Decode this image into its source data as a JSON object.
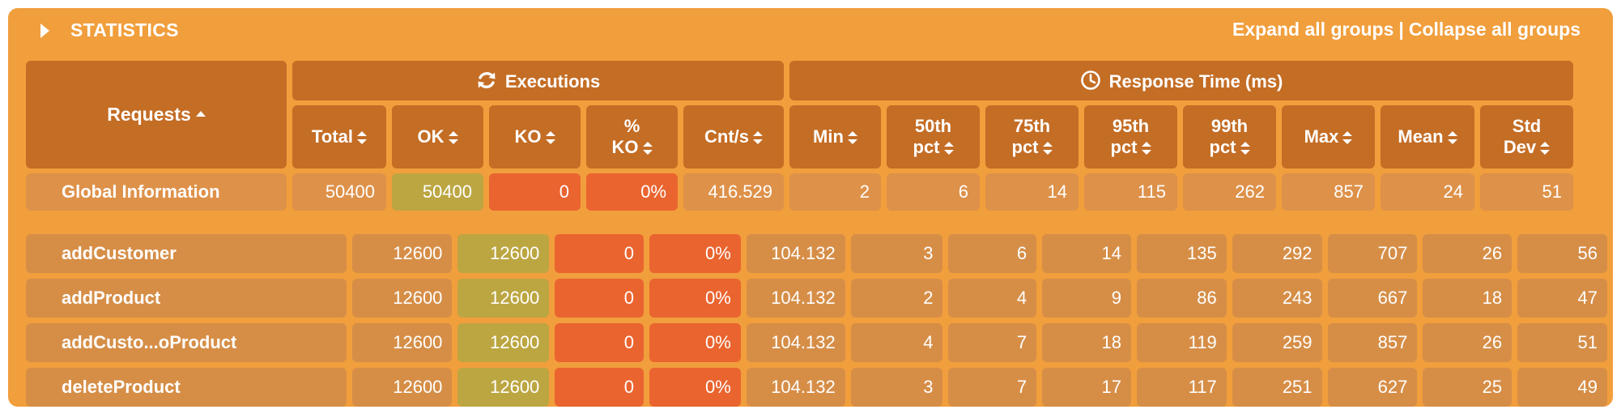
{
  "title": "STATISTICS",
  "links": {
    "expand": "Expand all groups",
    "separator": "|",
    "collapse": "Collapse all groups"
  },
  "groups": {
    "executions": "Executions",
    "response_time": "Response Time (ms)"
  },
  "columns": {
    "requests": "Requests",
    "total": "Total",
    "ok": "OK",
    "ko": "KO",
    "pct_ko_1": "%",
    "pct_ko_2": "KO",
    "cnts": "Cnt/s",
    "min": "Min",
    "p50_1": "50th",
    "p50_2": "pct",
    "p75_1": "75th",
    "p75_2": "pct",
    "p95_1": "95th",
    "p95_2": "pct",
    "p99_1": "99th",
    "p99_2": "pct",
    "max": "Max",
    "mean": "Mean",
    "std_1": "Std",
    "std_2": "Dev"
  },
  "global": {
    "name": "Global Information",
    "total": "50400",
    "ok": "50400",
    "ko": "0",
    "pct_ko": "0%",
    "cnts": "416.529",
    "min": "2",
    "p50": "6",
    "p75": "14",
    "p95": "115",
    "p99": "262",
    "max": "857",
    "mean": "24",
    "std": "51"
  },
  "rows": [
    {
      "name": "addCustomer",
      "total": "12600",
      "ok": "12600",
      "ko": "0",
      "pct_ko": "0%",
      "cnts": "104.132",
      "min": "3",
      "p50": "6",
      "p75": "14",
      "p95": "135",
      "p99": "292",
      "max": "707",
      "mean": "26",
      "std": "56"
    },
    {
      "name": "addProduct",
      "total": "12600",
      "ok": "12600",
      "ko": "0",
      "pct_ko": "0%",
      "cnts": "104.132",
      "min": "2",
      "p50": "4",
      "p75": "9",
      "p95": "86",
      "p99": "243",
      "max": "667",
      "mean": "18",
      "std": "47"
    },
    {
      "name": "addCusto...oProduct",
      "total": "12600",
      "ok": "12600",
      "ko": "0",
      "pct_ko": "0%",
      "cnts": "104.132",
      "min": "4",
      "p50": "7",
      "p75": "18",
      "p95": "119",
      "p99": "259",
      "max": "857",
      "mean": "26",
      "std": "51"
    },
    {
      "name": "deleteProduct",
      "total": "12600",
      "ok": "12600",
      "ko": "0",
      "pct_ko": "0%",
      "cnts": "104.132",
      "min": "3",
      "p50": "7",
      "p75": "17",
      "p95": "117",
      "p99": "251",
      "max": "627",
      "mean": "25",
      "std": "49"
    }
  ],
  "colors": {
    "panel": "#F19E3C",
    "header_cell": "#C46D25",
    "value_cell": "#D68E47",
    "ok_cell": "#BCA642",
    "ko_cell": "#EA642F"
  },
  "icons": {
    "title": "collapse-arrow-icon",
    "executions": "refresh-icon",
    "response_time": "clock-icon"
  }
}
